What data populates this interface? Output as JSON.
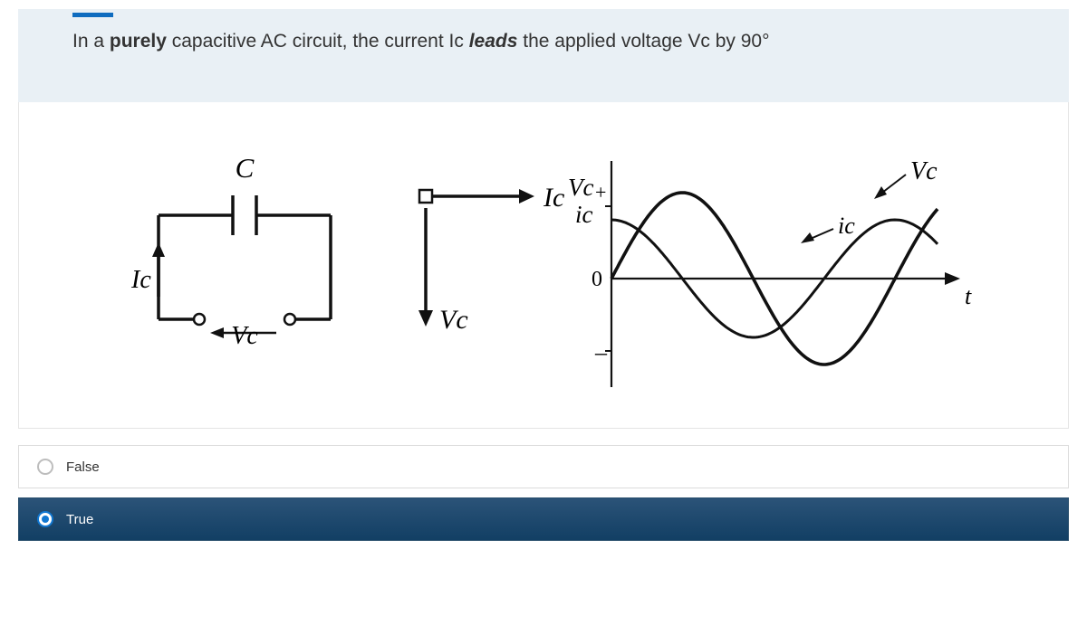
{
  "question": {
    "prefix": "In a ",
    "bold1": "purely",
    "mid1": " capacitive AC circuit, the current Ic ",
    "ital": "leads",
    "suffix": " the applied voltage Vc by 90°"
  },
  "options": [
    {
      "label": "False",
      "selected": false
    },
    {
      "label": "True",
      "selected": true
    }
  ],
  "diagram": {
    "circuit": {
      "label_C": "C",
      "label_Ic": "Ic",
      "label_Vc": "Vc",
      "stroke": "#111111",
      "stroke_width": 3.5
    },
    "phasor": {
      "label_Ic": "Ic",
      "label_Vc": "Vc",
      "stroke": "#111111",
      "stroke_width": 3.5
    },
    "wave": {
      "axis_label_y_top": "Vc",
      "axis_label_y_top2": "ic",
      "axis_origin": "0",
      "axis_plus": "+",
      "axis_minus": "–",
      "axis_t": "t",
      "label_Vc": "Vc",
      "label_ic": "ic",
      "amplitude_ic": 65,
      "amplitude_Vc": 95,
      "phase_offset_deg": 90,
      "stroke": "#111111",
      "stroke_vc": "#111111",
      "stroke_width": 3,
      "stroke_width_vc": 3.6,
      "bg": "#ffffff"
    },
    "font_family": "Georgia, 'Times New Roman', serif"
  }
}
